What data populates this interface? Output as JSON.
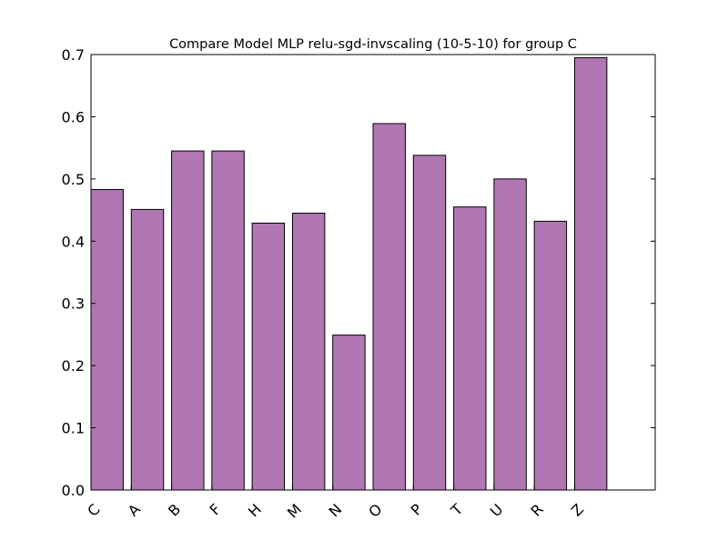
{
  "chart_data": {
    "type": "bar",
    "title": "Compare Model MLP relu-sgd-invscaling (10-5-10) for group C",
    "xlabel": "",
    "ylabel": "",
    "categories": [
      "C",
      "A",
      "B",
      "F",
      "H",
      "M",
      "N",
      "O",
      "P",
      "T",
      "U",
      "R",
      "Z"
    ],
    "values": [
      0.483,
      0.451,
      0.545,
      0.545,
      0.429,
      0.445,
      0.249,
      0.589,
      0.538,
      0.455,
      0.5,
      0.432,
      0.695
    ],
    "xlim": [
      0,
      14.0
    ],
    "ylim": [
      0,
      0.7
    ],
    "yticks": [
      "0.0",
      "0.1",
      "0.2",
      "0.3",
      "0.4",
      "0.5",
      "0.6",
      "0.7"
    ],
    "bar_color": "#b176b4",
    "edge_color": "#000000",
    "grid": false,
    "legend": "none"
  }
}
